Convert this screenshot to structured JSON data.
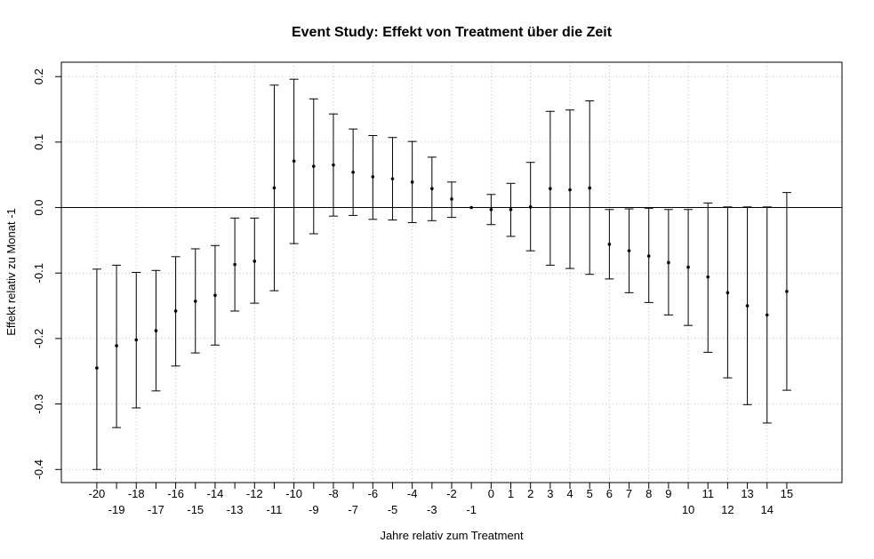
{
  "chart_data": {
    "type": "scatter",
    "title": "Event Study: Effekt von Treatment über die Zeit",
    "xlabel": "Jahre relativ zum Treatment",
    "ylabel": "Effekt relativ zu Monat -1",
    "xlim": [
      -21.8,
      17.8
    ],
    "ylim": [
      -0.42,
      0.222
    ],
    "grid": true,
    "reference_line_y": 0,
    "yticks": [
      "-0.4",
      "-0.3",
      "-0.2",
      "-0.1",
      "0.0",
      "0.1",
      "0.2"
    ],
    "xticks": [
      "-20",
      "-19",
      "-18",
      "-17",
      "-16",
      "-15",
      "-14",
      "-13",
      "-12",
      "-11",
      "-10",
      "-9",
      "-8",
      "-7",
      "-6",
      "-5",
      "-4",
      "-3",
      "-2",
      "-1",
      "0",
      "1",
      "2",
      "3",
      "4",
      "5",
      "6",
      "7",
      "8",
      "9",
      "10",
      "11",
      "12",
      "13",
      "14",
      "15"
    ],
    "series": [
      {
        "x": [
          -20,
          -19,
          -18,
          -17,
          -16,
          -15,
          -14,
          -13,
          -12,
          -11,
          -10,
          -9,
          -8,
          -7,
          -6,
          -5,
          -4,
          -3,
          -2,
          -1,
          0,
          1,
          2,
          3,
          4,
          5,
          6,
          7,
          8,
          9,
          10,
          11,
          12,
          13,
          14,
          15
        ],
        "estimate": [
          -0.245,
          -0.211,
          -0.202,
          -0.188,
          -0.158,
          -0.143,
          -0.134,
          -0.087,
          -0.082,
          0.03,
          0.071,
          0.063,
          0.065,
          0.054,
          0.047,
          0.044,
          0.039,
          0.029,
          0.013,
          0.0,
          -0.003,
          -0.003,
          0.001,
          0.029,
          0.027,
          0.03,
          -0.056,
          -0.066,
          -0.074,
          -0.084,
          -0.091,
          -0.106,
          -0.13,
          -0.15,
          -0.164,
          -0.128
        ],
        "ci_lower": [
          -0.4,
          -0.336,
          -0.306,
          -0.28,
          -0.242,
          -0.222,
          -0.21,
          -0.158,
          -0.146,
          -0.127,
          -0.055,
          -0.04,
          -0.013,
          -0.012,
          -0.018,
          -0.019,
          -0.023,
          -0.02,
          -0.015,
          0.0,
          -0.026,
          -0.044,
          -0.066,
          -0.088,
          -0.093,
          -0.102,
          -0.109,
          -0.13,
          -0.145,
          -0.164,
          -0.18,
          -0.221,
          -0.26,
          -0.301,
          -0.329,
          -0.279
        ],
        "ci_upper": [
          -0.094,
          -0.088,
          -0.099,
          -0.096,
          -0.075,
          -0.063,
          -0.058,
          -0.016,
          -0.016,
          0.187,
          0.196,
          0.166,
          0.143,
          0.12,
          0.11,
          0.107,
          0.101,
          0.077,
          0.039,
          0.0,
          0.02,
          0.037,
          0.069,
          0.147,
          0.149,
          0.163,
          -0.003,
          -0.002,
          -0.001,
          -0.003,
          -0.003,
          0.007,
          0.001,
          0.001,
          0.001,
          0.023
        ]
      }
    ]
  }
}
